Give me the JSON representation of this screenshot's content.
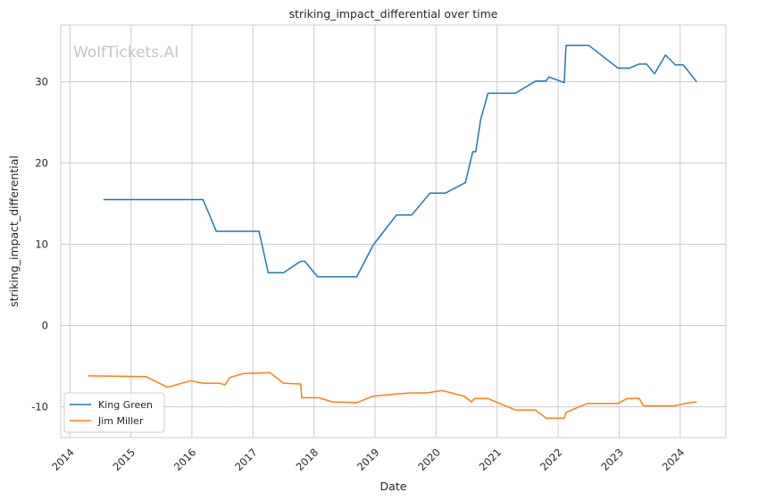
{
  "chart_data": {
    "type": "line",
    "title": "striking_impact_differential over time",
    "xlabel": "Date",
    "ylabel": "striking_impact_differential",
    "watermark": "WolfTickets.AI",
    "xlim": [
      2013.85,
      2024.75
    ],
    "ylim": [
      -13.8,
      37
    ],
    "x_ticks": [
      2014,
      2015,
      2016,
      2017,
      2018,
      2019,
      2020,
      2021,
      2022,
      2023,
      2024
    ],
    "y_ticks": [
      -10,
      0,
      10,
      20,
      30
    ],
    "grid": true,
    "legend_position": "lower-left",
    "colors": {
      "King Green": "#1f77b4",
      "Jim Miller": "#ff7f0e",
      "grid": "#cccccc",
      "axes": "#cccccc",
      "text": "#262626"
    },
    "series": [
      {
        "name": "King Green",
        "x": [
          2014.55,
          2016.18,
          2016.4,
          2017.1,
          2017.25,
          2017.5,
          2017.78,
          2017.85,
          2018.06,
          2018.7,
          2018.97,
          2019.35,
          2019.6,
          2019.9,
          2020.15,
          2020.48,
          2020.6,
          2020.65,
          2020.73,
          2020.85,
          2021.3,
          2021.63,
          2021.8,
          2021.85,
          2022.1,
          2022.13,
          2022.5,
          2022.98,
          2023.17,
          2023.33,
          2023.45,
          2023.58,
          2023.76,
          2023.92,
          2024.05,
          2024.27
        ],
        "y": [
          15.5,
          15.5,
          11.6,
          11.6,
          6.5,
          6.5,
          7.9,
          7.9,
          6.0,
          6.0,
          9.9,
          13.6,
          13.6,
          16.3,
          16.3,
          17.6,
          21.4,
          21.4,
          25.3,
          28.6,
          28.6,
          30.1,
          30.1,
          30.6,
          29.9,
          34.5,
          34.5,
          31.7,
          31.7,
          32.2,
          32.2,
          31.0,
          33.3,
          32.1,
          32.1,
          30.0
        ]
      },
      {
        "name": "Jim Miller",
        "x": [
          2014.3,
          2015.25,
          2015.6,
          2015.98,
          2016.18,
          2016.45,
          2016.54,
          2016.62,
          2016.85,
          2017.28,
          2017.5,
          2017.78,
          2017.8,
          2018.08,
          2018.3,
          2018.7,
          2018.97,
          2019.4,
          2019.6,
          2019.85,
          2020.1,
          2020.46,
          2020.58,
          2020.63,
          2020.85,
          2021.3,
          2021.63,
          2021.8,
          2022.1,
          2022.13,
          2022.48,
          2022.98,
          2023.13,
          2023.33,
          2023.4,
          2023.9,
          2024.08,
          2024.27
        ],
        "y": [
          -6.2,
          -6.3,
          -7.6,
          -6.8,
          -7.1,
          -7.1,
          -7.3,
          -6.4,
          -5.9,
          -5.8,
          -7.1,
          -7.2,
          -8.9,
          -8.9,
          -9.4,
          -9.5,
          -8.7,
          -8.4,
          -8.3,
          -8.3,
          -8.0,
          -8.7,
          -9.4,
          -9.0,
          -9.0,
          -10.4,
          -10.4,
          -11.4,
          -11.4,
          -10.7,
          -9.6,
          -9.6,
          -9.0,
          -9.0,
          -9.9,
          -9.9,
          -9.6,
          -9.4
        ]
      }
    ]
  }
}
